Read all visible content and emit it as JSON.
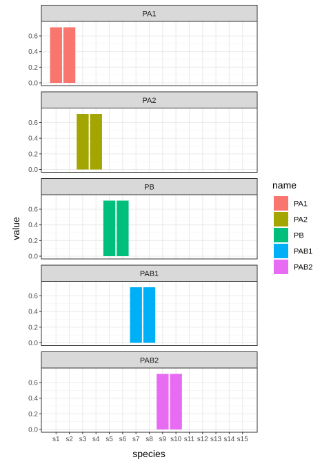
{
  "chart_data": {
    "type": "bar",
    "facet_by": "name",
    "categories": [
      "s1",
      "s2",
      "s3",
      "s4",
      "s5",
      "s6",
      "s7",
      "s8",
      "s9",
      "s10",
      "s11",
      "s12",
      "s13",
      "s14",
      "s15"
    ],
    "ylim": [
      0,
      0.75
    ],
    "yticks": [
      0.0,
      0.2,
      0.4,
      0.6
    ],
    "ytick_labels": [
      "0.0",
      "0.2",
      "0.4",
      "0.6"
    ],
    "xlabel": "species",
    "ylabel": "value",
    "grid": true,
    "legend": {
      "title": "name",
      "placement": "right"
    },
    "series": [
      {
        "name": "PA1",
        "color": "#F8766D",
        "values": [
          0.71,
          0.71,
          0,
          0,
          0,
          0,
          0,
          0,
          0,
          0,
          0,
          0,
          0,
          0,
          0
        ]
      },
      {
        "name": "PA2",
        "color": "#A3A500",
        "values": [
          0,
          0,
          0.71,
          0.71,
          0,
          0,
          0,
          0,
          0,
          0,
          0,
          0,
          0,
          0,
          0
        ]
      },
      {
        "name": "PB",
        "color": "#00BF7D",
        "values": [
          0,
          0,
          0,
          0,
          0.71,
          0.71,
          0,
          0,
          0,
          0,
          0,
          0,
          0,
          0,
          0
        ]
      },
      {
        "name": "PAB1",
        "color": "#00B0F6",
        "values": [
          0,
          0,
          0,
          0,
          0,
          0,
          0.71,
          0.71,
          0,
          0,
          0,
          0,
          0,
          0,
          0
        ]
      },
      {
        "name": "PAB2",
        "color": "#E76BF3",
        "values": [
          0,
          0,
          0,
          0,
          0,
          0,
          0,
          0,
          0.71,
          0.71,
          0,
          0,
          0,
          0,
          0
        ]
      }
    ]
  }
}
